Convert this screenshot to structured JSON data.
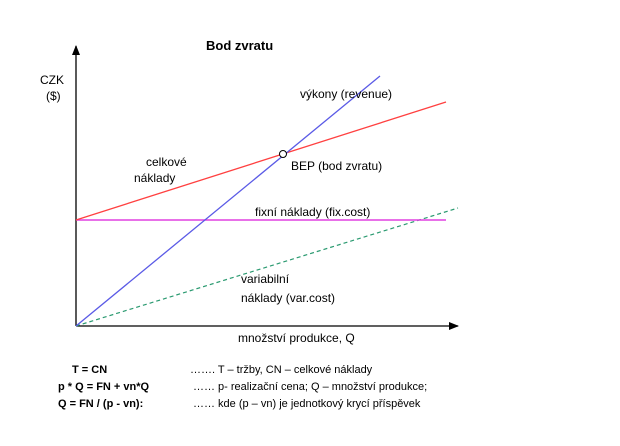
{
  "title": "Bod  zvratu",
  "axis": {
    "y_label_line1": "CZK",
    "y_label_line2": "($)",
    "x_label": "množství produkce, Q"
  },
  "labels": {
    "revenue": "výkony   (revenue)",
    "total_costs_line1": "celkové",
    "total_costs_line2": "náklady",
    "bep": "BEP (bod zvratu)",
    "fixed_costs": "fixní náklady (fix.cost)",
    "variable_costs_line1": "variabilní",
    "variable_costs_line2": "náklady (var.cost)"
  },
  "colors": {
    "revenue": "#5a5ae6",
    "total_costs": "#ff4040",
    "fixed_costs": "#e040e0",
    "variable_costs": "#2a9a70",
    "axis": "#000000"
  },
  "formulas": [
    {
      "left": "T    =    CN",
      "right": "……. T – tržby, CN – celkové náklady"
    },
    {
      "left": "p * Q = FN + vn*Q",
      "right": "……  p- realizační cena; Q – množství produkce;"
    },
    {
      "left": "Q = FN / (p - vn):",
      "right": "……  kde (p – vn) je jednotkový krycí příspěvek"
    }
  ]
}
